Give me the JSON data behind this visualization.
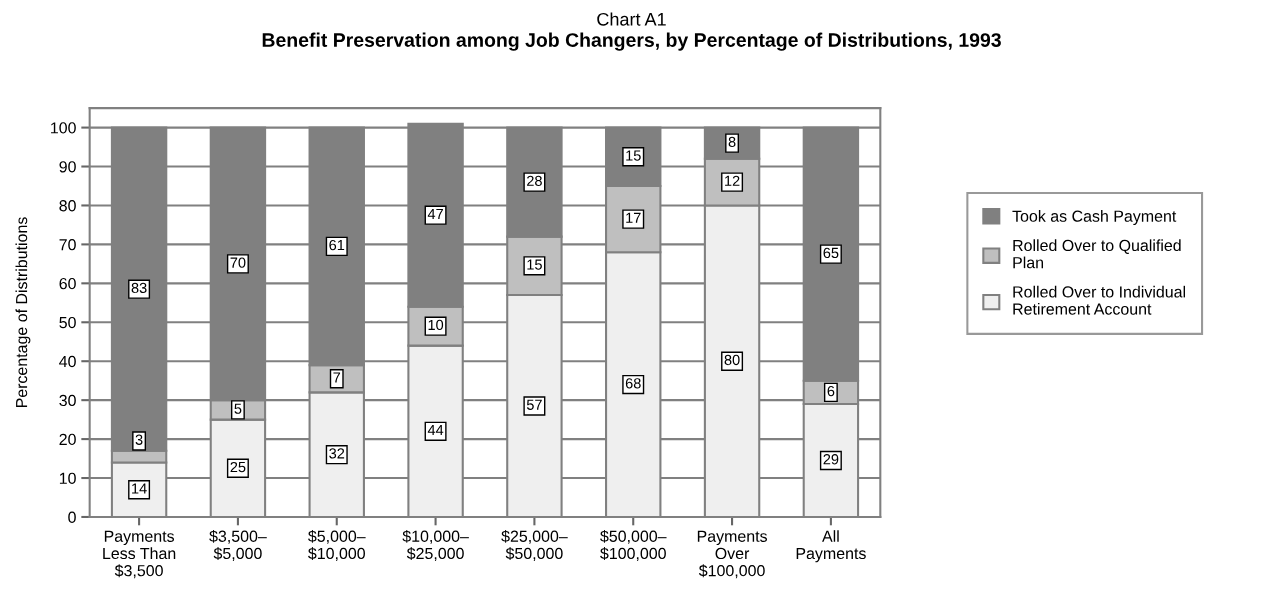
{
  "chart_data": {
    "type": "bar",
    "title": "Chart A1",
    "subtitle": "Benefit Preservation among Job Changers, by Percentage of Distributions, 1993",
    "ylabel": "Percentage of Distributions",
    "categories": [
      "Payments\nLess Than\n$3,500",
      "$3,500–\n$5,000",
      "$5,000–\n$10,000",
      "$10,000–\n$25,000",
      "$25,000–\n$50,000",
      "$50,000–\n$100,000",
      "Payments\nOver\n$100,000",
      "All\nPayments"
    ],
    "series": [
      {
        "name": "Rolled Over to Individual\nRetirement Account",
        "color": "#efefef",
        "values": [
          14,
          25,
          32,
          44,
          57,
          68,
          80,
          29
        ]
      },
      {
        "name": "Rolled Over to Qualified\nPlan",
        "color": "#bfbfbf",
        "values": [
          3,
          5,
          7,
          10,
          15,
          17,
          12,
          6
        ]
      },
      {
        "name": "Took as Cash Payment",
        "color": "#808080",
        "values": [
          83,
          70,
          61,
          47,
          28,
          15,
          8,
          65
        ]
      }
    ],
    "stacked": true,
    "ylim": [
      0,
      105
    ],
    "yticks": [
      0,
      10,
      20,
      30,
      40,
      50,
      60,
      70,
      80,
      90,
      100
    ],
    "grid": "y",
    "legend": "right",
    "data_labels": true
  }
}
